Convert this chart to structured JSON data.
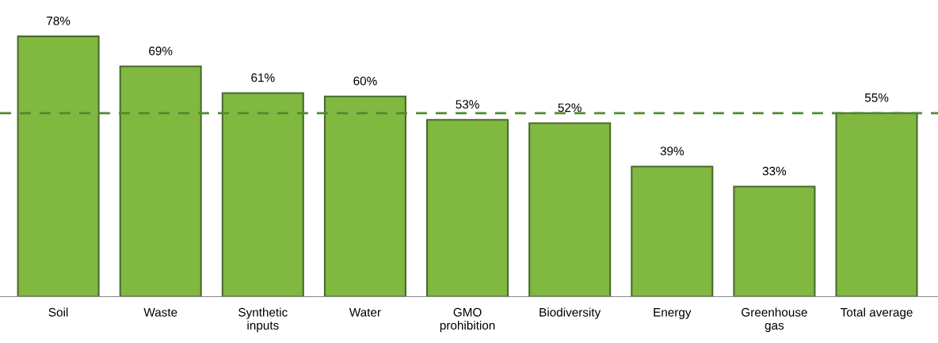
{
  "chart_data": {
    "type": "bar",
    "categories": [
      "Soil",
      "Waste",
      "Synthetic\ninputs",
      "Water",
      "GMO\nprohibition",
      "Biodiversity",
      "Energy",
      "Greenhouse\ngas",
      "Total average"
    ],
    "values": [
      78,
      69,
      61,
      60,
      53,
      52,
      39,
      33,
      55
    ],
    "value_labels": [
      "78%",
      "69%",
      "61%",
      "60%",
      "53%",
      "52%",
      "39%",
      "33%",
      "55%"
    ],
    "color": "#80b840",
    "ref_lines": [
      {
        "axis": "y",
        "value": 55,
        "color": "#4e8a2e",
        "line_style": "dashed"
      }
    ],
    "grid": false,
    "legend": false
  }
}
